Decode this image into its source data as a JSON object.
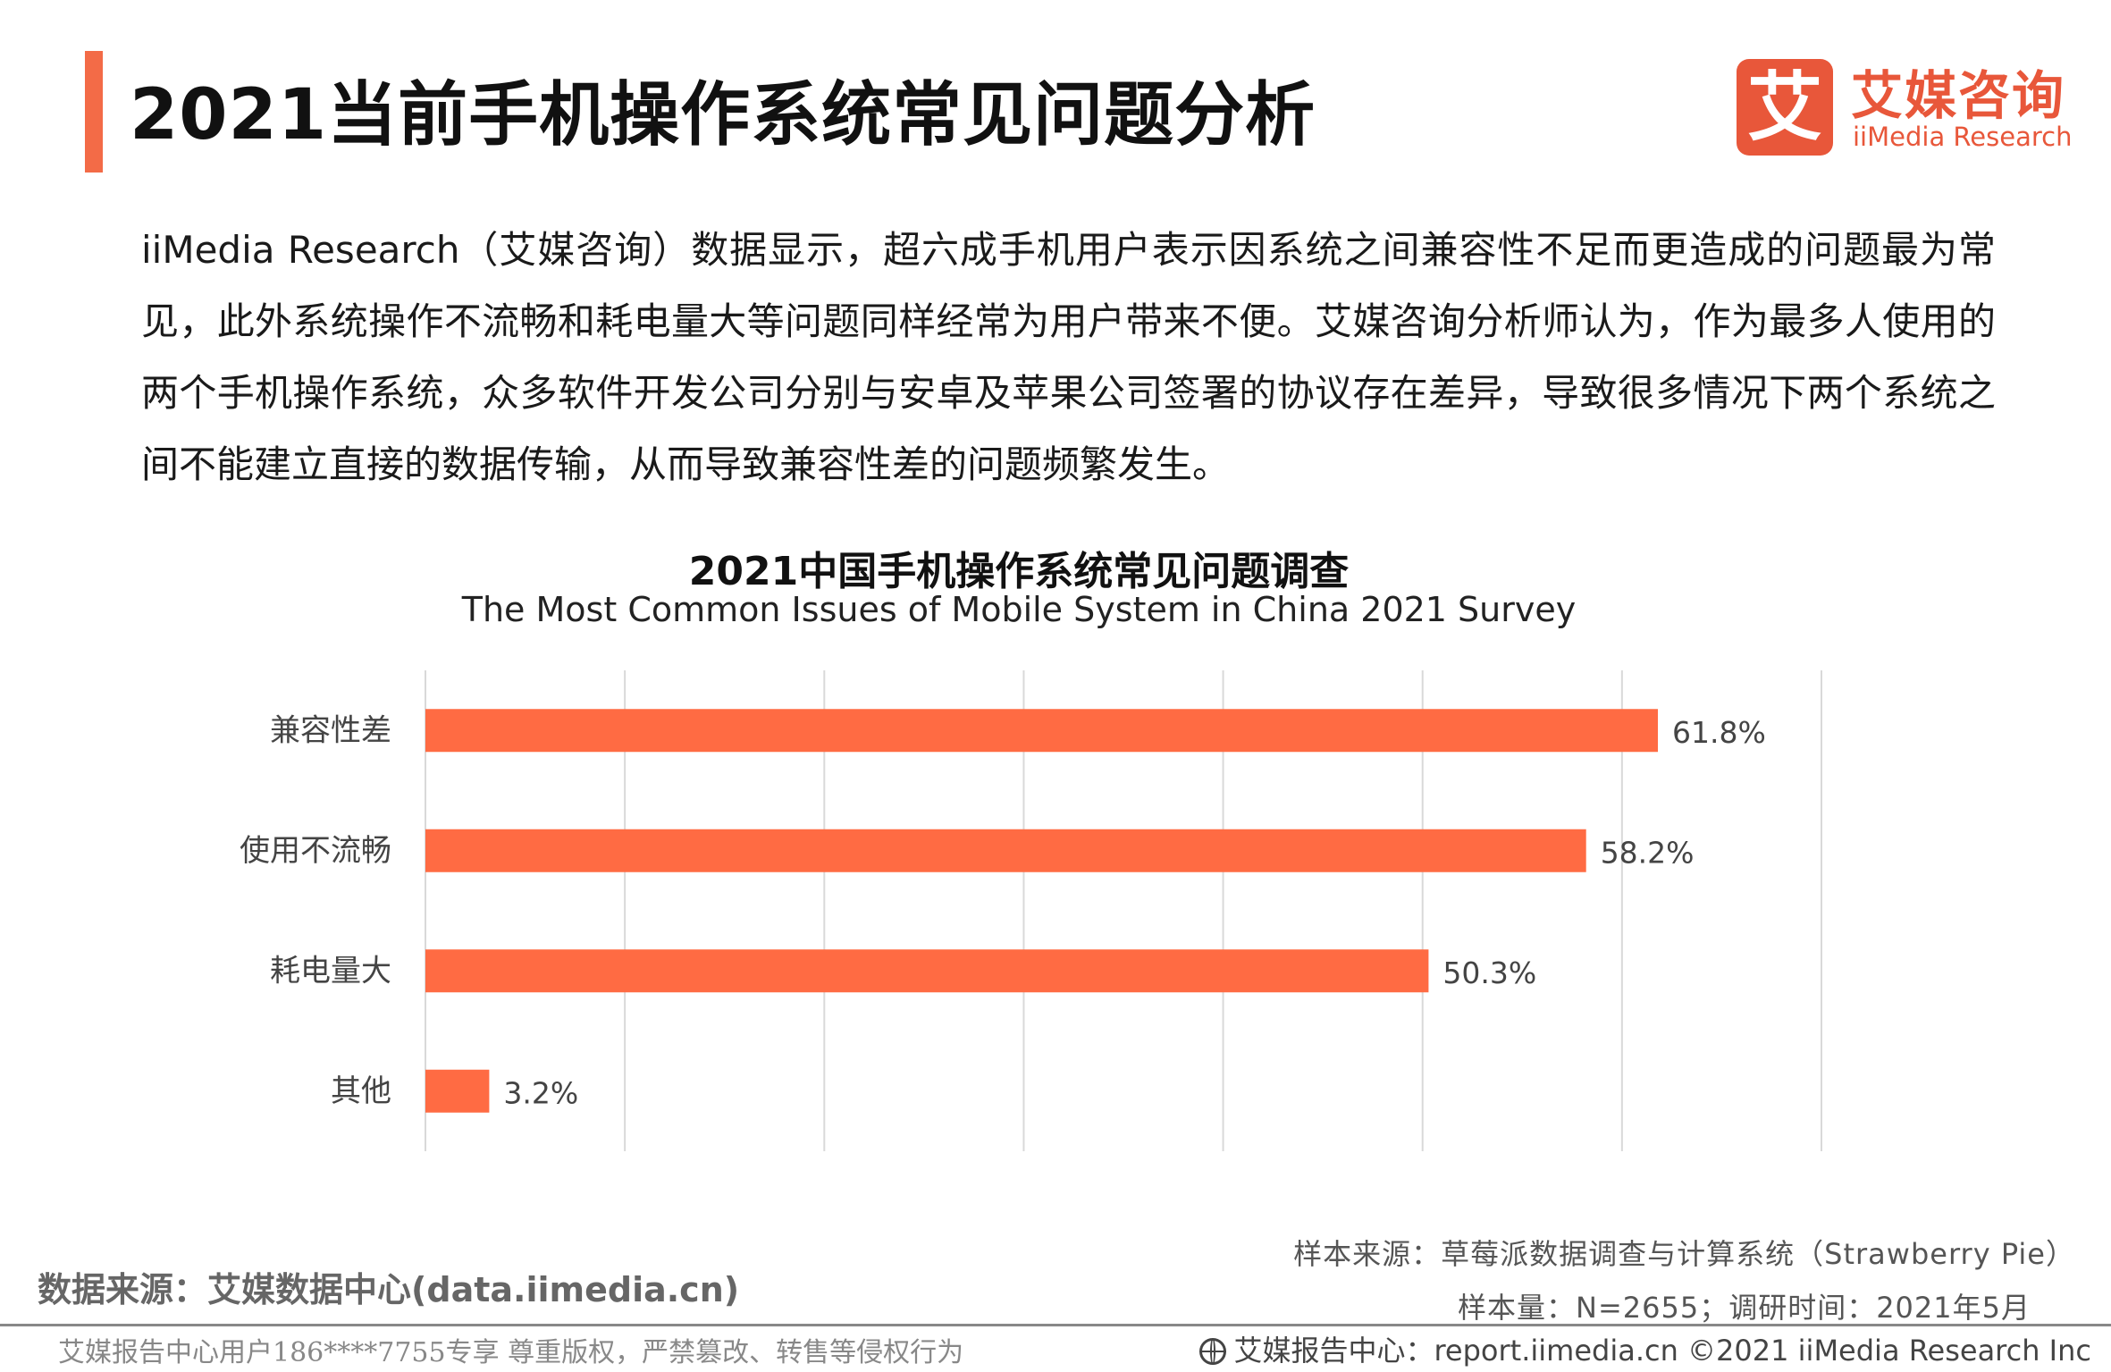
{
  "header": {
    "title": "2021当前手机操作系统常见问题分析",
    "logo_mark": "艾",
    "logo_cn": "艾媒咨询",
    "logo_en": "iiMedia Research"
  },
  "intro": "iiMedia Research（艾媒咨询）数据显示，超六成手机用户表示因系统之间兼容性不足而更造成的问题最为常见，此外系统操作不流畅和耗电量大等问题同样经常为用户带来不便。艾媒咨询分析师认为，作为最多人使用的两个手机操作系统，众多软件开发公司分别与安卓及苹果公司签署的协议存在差异，导致很多情况下两个系统之间不能建立直接的数据传输，从而导致兼容性差的问题频繁发生。",
  "chart_data": {
    "type": "bar",
    "orientation": "horizontal",
    "title": "2021中国手机操作系统常见问题调查",
    "subtitle": "The Most Common Issues of Mobile System in China 2021 Survey",
    "categories": [
      "兼容性差",
      "使用不流畅",
      "耗电量大",
      "其他"
    ],
    "values": [
      61.8,
      58.2,
      50.3,
      3.2
    ],
    "value_labels": [
      "61.8%",
      "58.2%",
      "50.3%",
      "3.2%"
    ],
    "xlim": [
      0,
      70
    ],
    "grid": true,
    "bar_color": "#ff6b43"
  },
  "footer": {
    "data_source": "数据来源：艾媒数据中心(data.iimedia.cn)",
    "sample_source": "样本来源：草莓派数据调查与计算系统（Strawberry  Pie）",
    "sample_size": "样本量：N=2655；调研时间：2021年5月",
    "watermark": "艾媒报告中心用户186****7755专享 尊重版权，严禁篡改、转售等侵权行为",
    "report_center": "艾媒报告中心：report.iimedia.cn   ©2021  iiMedia Research  Inc"
  }
}
